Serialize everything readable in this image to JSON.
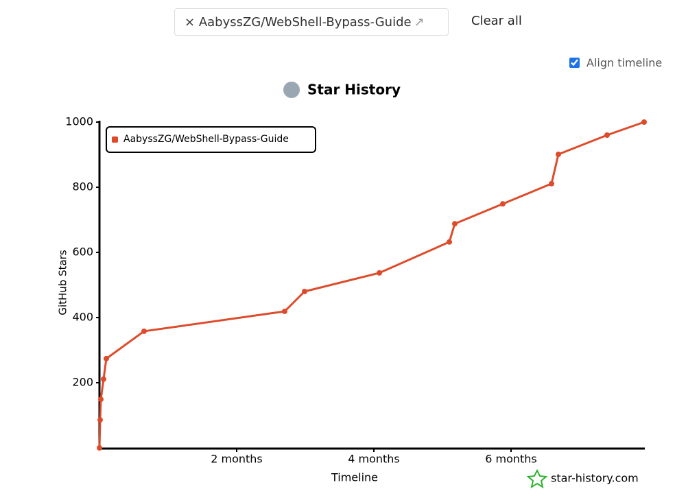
{
  "ui": {
    "repo_chip": "AabyssZG/WebShell-Bypass-Guide",
    "clear_all": "Clear all",
    "align_timeline": "Align timeline",
    "align_checked": true
  },
  "chart_data": {
    "type": "line",
    "title": "Star History",
    "x_label": "Timeline",
    "y_label": "GitHub Stars",
    "watermark": "star-history.com",
    "series": [
      {
        "name": "AabyssZG/WebShell-Bypass-Guide",
        "color": "#dd4b2b",
        "x": [
          0,
          0.01,
          0.02,
          0.06,
          0.1,
          0.65,
          2.7,
          2.99,
          4.08,
          5.1,
          5.18,
          5.88,
          6.59,
          6.69,
          7.4,
          7.94
        ],
        "values": [
          0,
          86,
          149,
          211,
          274,
          358,
          419,
          480,
          537,
          632,
          688,
          749,
          811,
          901,
          960,
          1000
        ]
      }
    ],
    "xlim": [
      0,
      7.95
    ],
    "xticks": [
      {
        "value": 2,
        "label": "2 months"
      },
      {
        "value": 4,
        "label": "4 months"
      },
      {
        "value": 6,
        "label": "6 months"
      }
    ],
    "ylim": [
      0,
      1000
    ],
    "yticks": [
      200,
      400,
      600,
      800,
      1000
    ],
    "legend": "top-left"
  }
}
